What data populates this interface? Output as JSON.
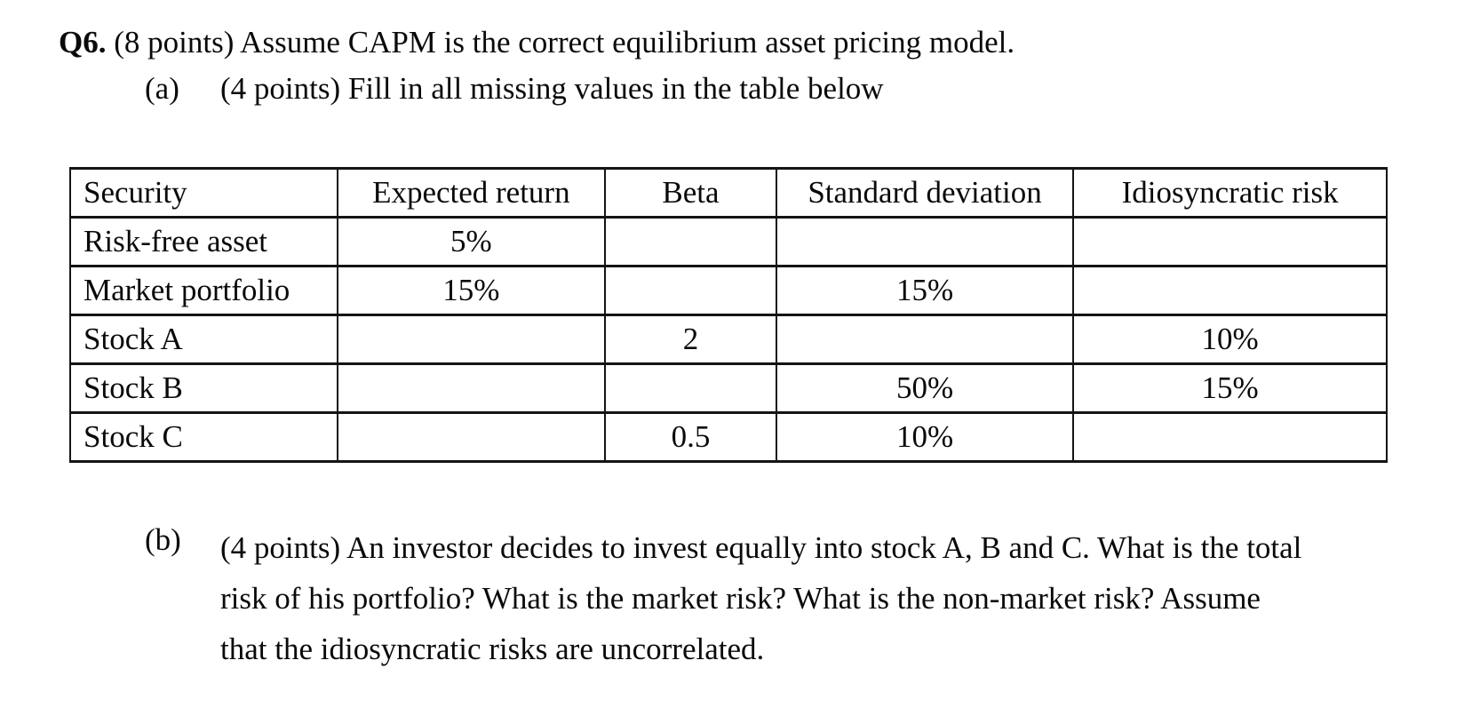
{
  "question": {
    "number": "Q6.",
    "text": " (8 points) Assume CAPM is the correct equilibrium asset pricing model."
  },
  "part_a": {
    "label": "(a)",
    "text": "(4 points) Fill in all missing values in the table below"
  },
  "table": {
    "headers": [
      "Security",
      "Expected return",
      "Beta",
      "Standard deviation",
      "Idiosyncratic risk"
    ],
    "rows": [
      {
        "cells": [
          "Risk-free asset",
          "5%",
          "",
          "",
          ""
        ]
      },
      {
        "cells": [
          "Market portfolio",
          "15%",
          "",
          "15%",
          ""
        ]
      },
      {
        "cells": [
          "Stock A",
          "",
          "2",
          "",
          "10%"
        ]
      },
      {
        "cells": [
          "Stock B",
          "",
          "",
          "50%",
          "15%"
        ]
      },
      {
        "cells": [
          "Stock C",
          "",
          "0.5",
          "10%",
          ""
        ]
      }
    ]
  },
  "part_b": {
    "label": "(b)",
    "lines": [
      "(4 points) An investor decides to invest equally into stock A, B and C. What is the total",
      "risk of his portfolio? What is the market risk? What is the non-market risk? Assume",
      "that the idiosyncratic risks are uncorrelated."
    ]
  },
  "colors": {
    "background": "#ffffff",
    "text": "#0a0a0a",
    "table_border": "#141414"
  }
}
